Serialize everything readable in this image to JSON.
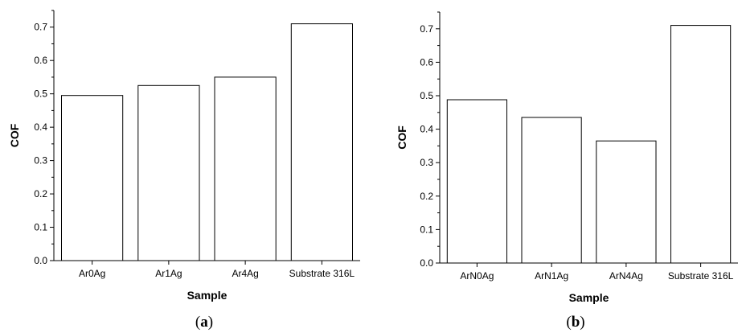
{
  "chart_data": [
    {
      "type": "bar",
      "panel_label": "a",
      "categories": [
        "Ar0Ag",
        "Ar1Ag",
        "Ar4Ag",
        "Substrate 316L"
      ],
      "values": [
        0.495,
        0.525,
        0.55,
        0.71
      ],
      "xlabel": "Sample",
      "ylabel": "COF",
      "ylim": [
        0,
        0.75
      ],
      "yticks": [
        "0.0",
        "0.1",
        "0.2",
        "0.3",
        "0.4",
        "0.5",
        "0.6",
        "0.7"
      ],
      "grid": false,
      "bar_fill": "#ffffff",
      "bar_stroke": "#000000"
    },
    {
      "type": "bar",
      "panel_label": "b",
      "categories": [
        "ArN0Ag",
        "ArN1Ag",
        "ArN4Ag",
        "Substrate 316L"
      ],
      "values": [
        0.488,
        0.435,
        0.365,
        0.71
      ],
      "xlabel": "Sample",
      "ylabel": "COF",
      "ylim": [
        0,
        0.75
      ],
      "yticks": [
        "0.0",
        "0.1",
        "0.2",
        "0.3",
        "0.4",
        "0.5",
        "0.6",
        "0.7"
      ],
      "grid": false,
      "bar_fill": "#ffffff",
      "bar_stroke": "#000000"
    }
  ]
}
